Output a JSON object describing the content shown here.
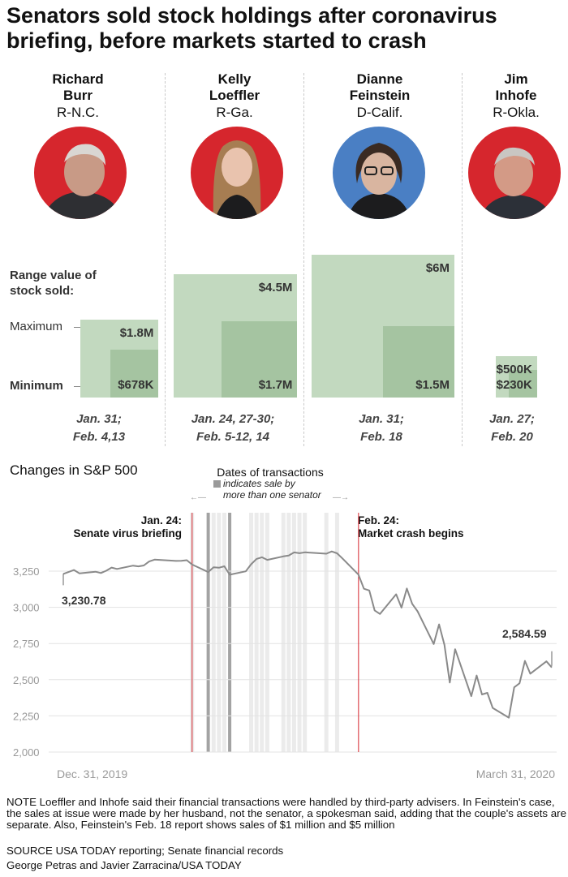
{
  "title": "Senators sold stock holdings after coronavirus briefing, before markets started to crash",
  "colors": {
    "republican": "#d6262d",
    "democrat": "#4a7fc4",
    "max_bar": "#c2d9bf",
    "min_bar": "#a5c4a1",
    "line": "#8a8a8a",
    "marker": "#d6262d"
  },
  "senators": [
    {
      "name": "Richard\nBurr",
      "party": "R-N.C.",
      "max_label": "$1.8M",
      "min_label": "$678K",
      "dates_line1": "Jan. 31;",
      "dates_line2": "Feb. 4,13"
    },
    {
      "name": "Kelly\nLoeffler",
      "party": "R-Ga.",
      "max_label": "$4.5M",
      "min_label": "$1.7M",
      "dates_line1": "Jan. 24, 27-30;",
      "dates_line2": "Feb. 5-12, 14"
    },
    {
      "name": "Dianne\nFeinstein",
      "party": "D-Calif.",
      "max_label": "$6M",
      "min_label": "$1.5M",
      "dates_line1": "Jan. 31;",
      "dates_line2": "Feb. 18"
    },
    {
      "name": "Jim\nInhofe",
      "party": "R-Okla.",
      "max_label": "$500K",
      "min_label": "$230K",
      "dates_line1": "Jan. 27;",
      "dates_line2": "Feb. 20"
    }
  ],
  "bar_labels": {
    "heading": "Range value of\nstock sold:",
    "maximum": "Maximum",
    "minimum": "Minimum"
  },
  "sp_section": {
    "title": "Changes in S&P 500",
    "legend_title": "Dates of transactions",
    "legend_note_line1": "indicates sale by",
    "legend_note_line2": "more than one senator",
    "event_left_date": "Jan. 24:",
    "event_left_text": "Senate virus briefing",
    "event_right_date": "Feb. 24:",
    "event_right_text": "Market crash begins",
    "start_value_label": "3,230.78",
    "end_value_label": "2,584.59"
  },
  "chart_data": [
    {
      "type": "bar",
      "title": "Range value of stock sold:",
      "categories": [
        "Richard Burr",
        "Kelly Loeffler",
        "Dianne Feinstein",
        "Jim Inhofe"
      ],
      "series": [
        {
          "name": "Maximum",
          "values": [
            1800000,
            4500000,
            6000000,
            500000
          ]
        },
        {
          "name": "Minimum",
          "values": [
            678000,
            1700000,
            1500000,
            230000
          ]
        }
      ]
    },
    {
      "type": "line",
      "title": "Changes in S&P 500",
      "x_start": "Dec. 31, 2019",
      "x_end": "March 31, 2020",
      "yticks": [
        2000,
        2250,
        2500,
        2750,
        3000,
        3250
      ],
      "ytick_labels": [
        "2,000",
        "2,250",
        "2,500",
        "2,750",
        "3,000",
        "3,250"
      ],
      "ylim": [
        2000,
        3300
      ],
      "grid": true,
      "x": [
        "2019-12-31",
        "2020-01-02",
        "2020-01-03",
        "2020-01-06",
        "2020-01-07",
        "2020-01-08",
        "2020-01-09",
        "2020-01-10",
        "2020-01-13",
        "2020-01-14",
        "2020-01-15",
        "2020-01-16",
        "2020-01-17",
        "2020-01-21",
        "2020-01-22",
        "2020-01-23",
        "2020-01-24",
        "2020-01-27",
        "2020-01-28",
        "2020-01-29",
        "2020-01-30",
        "2020-01-31",
        "2020-02-03",
        "2020-02-04",
        "2020-02-05",
        "2020-02-06",
        "2020-02-07",
        "2020-02-10",
        "2020-02-11",
        "2020-02-12",
        "2020-02-13",
        "2020-02-14",
        "2020-02-18",
        "2020-02-19",
        "2020-02-20",
        "2020-02-21",
        "2020-02-24",
        "2020-02-25",
        "2020-02-26",
        "2020-02-27",
        "2020-02-28",
        "2020-03-02",
        "2020-03-03",
        "2020-03-04",
        "2020-03-05",
        "2020-03-06",
        "2020-03-09",
        "2020-03-10",
        "2020-03-11",
        "2020-03-12",
        "2020-03-13",
        "2020-03-16",
        "2020-03-17",
        "2020-03-18",
        "2020-03-19",
        "2020-03-20",
        "2020-03-23",
        "2020-03-24",
        "2020-03-25",
        "2020-03-26",
        "2020-03-27",
        "2020-03-30",
        "2020-03-31"
      ],
      "values": [
        3230.78,
        3257.85,
        3234.85,
        3246.28,
        3237.18,
        3253.05,
        3274.7,
        3265.35,
        3288.13,
        3283.15,
        3289.29,
        3316.81,
        3329.62,
        3320.79,
        3321.75,
        3325.54,
        3295.47,
        3243.63,
        3276.24,
        3273.4,
        3283.66,
        3225.52,
        3248.92,
        3297.59,
        3334.69,
        3345.78,
        3327.71,
        3352.09,
        3357.75,
        3379.45,
        3373.94,
        3380.16,
        3370.29,
        3386.15,
        3373.23,
        3337.75,
        3225.89,
        3128.21,
        3116.39,
        2978.76,
        2954.22,
        3090.23,
        2997.73,
        3130.12,
        3023.94,
        2972.37,
        2746.56,
        2882.23,
        2741.38,
        2480.64,
        2711.02,
        2386.13,
        2529.19,
        2398.1,
        2409.39,
        2304.92,
        2237.4,
        2447.33,
        2475.56,
        2630.07,
        2541.47,
        2626.65,
        2584.59
      ],
      "transaction_dates": [
        "2020-01-24",
        "2020-01-27",
        "2020-01-28",
        "2020-01-29",
        "2020-01-30",
        "2020-01-31",
        "2020-02-04",
        "2020-02-05",
        "2020-02-06",
        "2020-02-07",
        "2020-02-10",
        "2020-02-11",
        "2020-02-12",
        "2020-02-13",
        "2020-02-14",
        "2020-02-18",
        "2020-02-20"
      ],
      "multi_senator_dates": [
        "2020-01-27",
        "2020-01-31"
      ],
      "events": [
        {
          "date": "2020-01-24",
          "label": "Jan. 24: Senate virus briefing"
        },
        {
          "date": "2020-02-24",
          "label": "Feb. 24: Market crash begins"
        }
      ]
    }
  ],
  "footer": {
    "note": "NOTE Loeffler and Inhofe said their financial transactions were handled by third-party advisers. In Feinstein's case, the sales at issue were made by her husband, not the senator, a spokesman said, adding that the couple's assets are separate. Also, Feinstein's Feb. 18 report shows sales of $1 million and $5 million",
    "source": "SOURCE USA TODAY reporting; Senate financial records",
    "credit": "George Petras and Javier Zarracina/USA TODAY"
  }
}
